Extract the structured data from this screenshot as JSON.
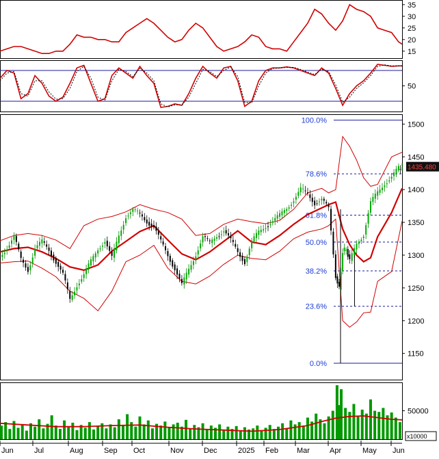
{
  "chart_data": [
    {
      "type": "line",
      "panel": "adx-indicator",
      "y_ticks": [
        "35",
        "30",
        "25",
        "20",
        "15"
      ],
      "ylim": [
        12,
        37
      ],
      "series": [
        {
          "color": "#d00000",
          "x": [
            0,
            10,
            20,
            30,
            40,
            50,
            60,
            70,
            80,
            90,
            100,
            110,
            120,
            130,
            140,
            150,
            160,
            170,
            180,
            190,
            200,
            210,
            220,
            230,
            240,
            250,
            260,
            270,
            280,
            290,
            300,
            310,
            320,
            330,
            340,
            350,
            360,
            370,
            380,
            390,
            400,
            410,
            420,
            430,
            440,
            450,
            460,
            470,
            480,
            490,
            500,
            510,
            520,
            530,
            540,
            550,
            560,
            570,
            575
          ],
          "values": [
            15,
            16,
            17,
            17,
            16,
            15,
            14,
            14,
            15,
            15,
            18,
            22,
            21,
            21,
            20,
            20,
            19,
            19,
            23,
            25,
            27,
            29,
            27,
            24,
            21,
            19,
            20,
            24,
            27,
            25,
            21,
            17,
            15,
            16,
            17,
            19,
            22,
            21,
            17,
            16,
            16,
            15,
            19,
            23,
            27,
            33,
            31,
            27,
            24,
            28,
            35,
            33,
            32,
            30,
            25,
            24,
            23,
            19,
            18
          ]
        }
      ]
    },
    {
      "type": "line",
      "panel": "stochastic-oscillator",
      "y_ticks": [
        "50"
      ],
      "ylim": [
        0,
        100
      ],
      "reference_lines": [
        80,
        20
      ],
      "series": [
        {
          "color": "#d00000",
          "x": [
            0,
            10,
            20,
            30,
            40,
            50,
            60,
            70,
            80,
            90,
            100,
            110,
            120,
            130,
            140,
            150,
            160,
            170,
            180,
            190,
            200,
            210,
            220,
            230,
            240,
            250,
            260,
            270,
            280,
            290,
            300,
            310,
            320,
            330,
            340,
            350,
            360,
            370,
            380,
            390,
            400,
            410,
            420,
            430,
            440,
            450,
            460,
            470,
            480,
            490,
            500,
            510,
            520,
            530,
            540,
            550,
            560,
            570,
            575
          ],
          "values": [
            65,
            80,
            75,
            25,
            35,
            70,
            55,
            30,
            20,
            28,
            55,
            85,
            90,
            55,
            20,
            25,
            70,
            85,
            75,
            65,
            88,
            70,
            55,
            8,
            10,
            15,
            12,
            35,
            65,
            88,
            75,
            65,
            85,
            88,
            60,
            10,
            20,
            60,
            80,
            85,
            85,
            87,
            85,
            80,
            75,
            70,
            85,
            75,
            45,
            12,
            35,
            50,
            60,
            75,
            92,
            90,
            88,
            89,
            89
          ]
        },
        {
          "color": "#000000",
          "style": "dashed",
          "x": [
            0,
            10,
            20,
            30,
            40,
            50,
            60,
            70,
            80,
            90,
            100,
            110,
            120,
            130,
            140,
            150,
            160,
            170,
            180,
            190,
            200,
            210,
            220,
            230,
            240,
            250,
            260,
            270,
            280,
            290,
            300,
            310,
            320,
            330,
            340,
            350,
            360,
            370,
            380,
            390,
            400,
            410,
            420,
            430,
            440,
            450,
            460,
            470,
            480,
            490,
            500,
            510,
            520,
            530,
            540,
            550,
            560,
            570,
            575
          ],
          "values": [
            60,
            75,
            78,
            35,
            30,
            60,
            60,
            38,
            24,
            25,
            45,
            78,
            88,
            65,
            28,
            22,
            60,
            82,
            78,
            68,
            84,
            75,
            60,
            15,
            9,
            13,
            13,
            28,
            55,
            82,
            78,
            68,
            80,
            87,
            68,
            18,
            17,
            50,
            75,
            84,
            85,
            86,
            86,
            82,
            77,
            72,
            82,
            78,
            52,
            18,
            28,
            45,
            56,
            70,
            88,
            91,
            89,
            89,
            89
          ]
        }
      ]
    },
    {
      "type": "candlestick",
      "panel": "price",
      "x_ticks": [
        "Jun",
        "Jul",
        "Aug",
        "Sep",
        "Oct",
        "Nov",
        "Dec",
        "2025",
        "Feb",
        "Mar",
        "Apr",
        "May",
        "Jun"
      ],
      "y_ticks": [
        "1500",
        "1450",
        "1400",
        "1350",
        "1300",
        "1250",
        "1200",
        "1150"
      ],
      "ylim": [
        1110,
        1515
      ],
      "last_price_label": "1435.480",
      "fibonacci_levels": [
        {
          "label": "100.0%",
          "value": 1506
        },
        {
          "label": "78.6%",
          "value": 1424
        },
        {
          "label": "61.8%",
          "value": 1361
        },
        {
          "label": "50.0%",
          "value": 1320
        },
        {
          "label": "38.2%",
          "value": 1276
        },
        {
          "label": "23.6%",
          "value": 1222
        },
        {
          "label": "0.0%",
          "value": 1135
        }
      ],
      "close": {
        "x": [
          0,
          10,
          20,
          30,
          40,
          50,
          60,
          70,
          80,
          90,
          100,
          110,
          120,
          130,
          140,
          150,
          160,
          170,
          180,
          190,
          200,
          210,
          220,
          230,
          240,
          250,
          260,
          270,
          280,
          290,
          300,
          310,
          320,
          330,
          340,
          350,
          360,
          370,
          380,
          390,
          400,
          410,
          420,
          430,
          440,
          450,
          460,
          470,
          480,
          485,
          490,
          495,
          500,
          510,
          520,
          530,
          540,
          550,
          560,
          570,
          575
        ],
        "values": [
          1298,
          1312,
          1328,
          1293,
          1278,
          1310,
          1320,
          1308,
          1290,
          1270,
          1232,
          1255,
          1270,
          1290,
          1310,
          1322,
          1295,
          1330,
          1360,
          1368,
          1362,
          1352,
          1343,
          1320,
          1300,
          1280,
          1254,
          1278,
          1302,
          1328,
          1318,
          1330,
          1338,
          1322,
          1305,
          1290,
          1320,
          1335,
          1345,
          1352,
          1360,
          1372,
          1385,
          1400,
          1393,
          1380,
          1385,
          1370,
          1268,
          1248,
          1305,
          1310,
          1290,
          1318,
          1332,
          1380,
          1395,
          1410,
          1420,
          1432,
          1435
        ]
      },
      "series": [
        {
          "name": "",
          "color": "#d00000",
          "role": "moving-average",
          "x": [
            0,
            20,
            40,
            60,
            80,
            100,
            120,
            140,
            160,
            180,
            200,
            220,
            240,
            260,
            280,
            300,
            320,
            340,
            360,
            380,
            400,
            420,
            440,
            460,
            470,
            480,
            490,
            500,
            510,
            520,
            530,
            540,
            560,
            575
          ],
          "values": [
            1305,
            1310,
            1312,
            1305,
            1295,
            1282,
            1277,
            1285,
            1306,
            1321,
            1336,
            1345,
            1323,
            1302,
            1293,
            1305,
            1321,
            1337,
            1320,
            1316,
            1330,
            1347,
            1362,
            1372,
            1377,
            1381,
            1340,
            1316,
            1300,
            1290,
            1296,
            1328,
            1365,
            1402
          ]
        },
        {
          "name": "",
          "color": "#d00000",
          "role": "bollinger-upper",
          "x": [
            0,
            20,
            40,
            60,
            80,
            100,
            120,
            140,
            160,
            180,
            200,
            220,
            240,
            260,
            280,
            300,
            320,
            340,
            360,
            380,
            400,
            420,
            440,
            460,
            470,
            480,
            490,
            500,
            510,
            520,
            530,
            540,
            560,
            575
          ],
          "values": [
            1322,
            1330,
            1333,
            1330,
            1323,
            1310,
            1345,
            1355,
            1359,
            1366,
            1377,
            1370,
            1365,
            1355,
            1330,
            1333,
            1347,
            1355,
            1351,
            1348,
            1353,
            1370,
            1395,
            1402,
            1395,
            1400,
            1481,
            1466,
            1445,
            1418,
            1405,
            1408,
            1450,
            1457
          ]
        },
        {
          "name": "",
          "color": "#d00000",
          "role": "bollinger-lower",
          "x": [
            0,
            20,
            40,
            60,
            80,
            100,
            120,
            140,
            160,
            180,
            200,
            220,
            240,
            260,
            280,
            300,
            320,
            340,
            360,
            380,
            400,
            420,
            440,
            460,
            470,
            480,
            490,
            500,
            510,
            520,
            530,
            540,
            560,
            575
          ],
          "values": [
            1288,
            1290,
            1291,
            1280,
            1267,
            1245,
            1234,
            1215,
            1245,
            1290,
            1300,
            1315,
            1280,
            1260,
            1256,
            1268,
            1286,
            1300,
            1295,
            1293,
            1306,
            1325,
            1335,
            1340,
            1345,
            1355,
            1200,
            1190,
            1198,
            1212,
            1213,
            1260,
            1275,
            1352
          ]
        }
      ]
    },
    {
      "type": "bar",
      "panel": "volume",
      "y_ticks": [
        "50000"
      ],
      "ylim": [
        0,
        100000
      ],
      "scale_label": "x10000",
      "bar_color": "#009900",
      "ma_color": "#d00000",
      "ma_x": [
        0,
        40,
        80,
        120,
        160,
        200,
        240,
        280,
        320,
        360,
        400,
        440,
        460,
        480,
        500,
        520,
        540,
        560,
        575
      ],
      "ma_values": [
        28000,
        25000,
        22000,
        22000,
        24000,
        25000,
        21000,
        18000,
        16000,
        14000,
        17000,
        24000,
        31000,
        37000,
        40000,
        41000,
        38000,
        35000,
        34000
      ],
      "x": [
        2,
        8,
        14,
        20,
        26,
        32,
        38,
        44,
        50,
        56,
        62,
        68,
        74,
        80,
        86,
        92,
        98,
        104,
        110,
        116,
        122,
        128,
        134,
        140,
        146,
        152,
        158,
        164,
        170,
        176,
        182,
        188,
        194,
        200,
        206,
        212,
        218,
        224,
        230,
        236,
        242,
        248,
        254,
        260,
        266,
        272,
        278,
        284,
        290,
        296,
        302,
        308,
        314,
        320,
        326,
        332,
        338,
        344,
        350,
        356,
        362,
        368,
        374,
        380,
        386,
        392,
        398,
        404,
        410,
        416,
        422,
        428,
        434,
        440,
        446,
        452,
        458,
        464,
        470,
        476,
        482,
        485,
        488,
        494,
        500,
        506,
        512,
        518,
        524,
        530,
        536,
        542,
        548,
        554,
        560,
        566,
        572
      ],
      "values": [
        24000,
        30000,
        18000,
        32000,
        20000,
        26000,
        15000,
        28000,
        22000,
        35000,
        19000,
        27000,
        42000,
        24000,
        18000,
        33000,
        21000,
        29000,
        16000,
        25000,
        20000,
        30000,
        17000,
        23000,
        28000,
        19000,
        26000,
        21000,
        35000,
        24000,
        44000,
        30000,
        22000,
        40000,
        26000,
        33000,
        19000,
        27000,
        24000,
        31000,
        20000,
        26000,
        29000,
        22000,
        34000,
        18000,
        25000,
        21000,
        28000,
        17000,
        24000,
        20000,
        26000,
        15000,
        22000,
        18000,
        23000,
        14000,
        21000,
        17000,
        19000,
        24000,
        16000,
        20000,
        25000,
        18000,
        22000,
        28000,
        19000,
        33000,
        26000,
        30000,
        24000,
        38000,
        31000,
        45000,
        35000,
        28000,
        40000,
        50000,
        95000,
        60000,
        88000,
        55000,
        48000,
        62000,
        40000,
        52000,
        45000,
        70000,
        50000,
        48000,
        55000,
        42000,
        47000,
        38000,
        30000
      ]
    }
  ]
}
